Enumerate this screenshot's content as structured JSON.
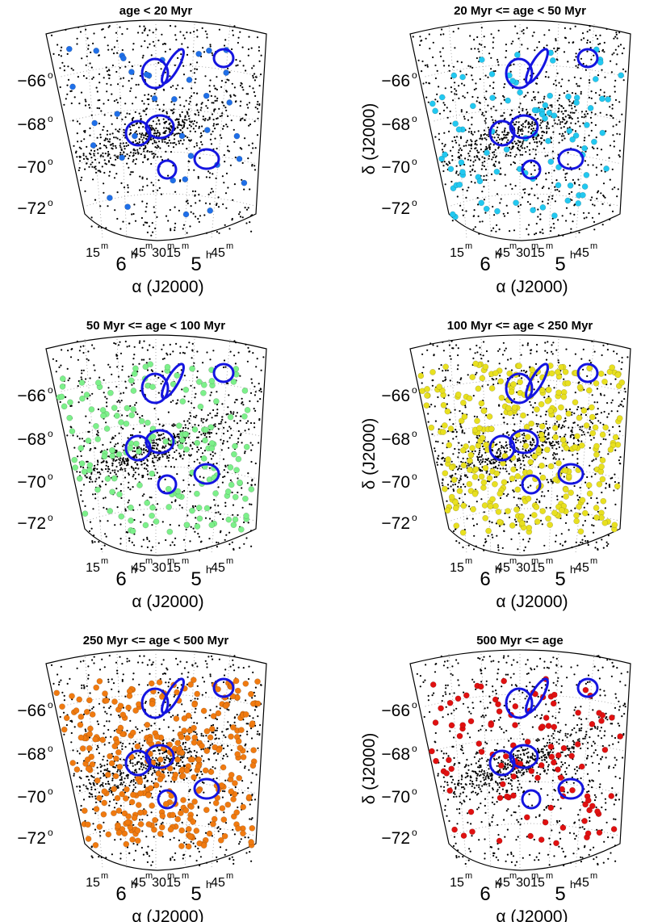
{
  "chart_data": [
    {
      "type": "scatter",
      "title": "age < 20 Myr",
      "xlabel": "α (J2000)",
      "ylabel": "",
      "marker_color": "#1f6fe8",
      "highlight_count": 36
    },
    {
      "type": "scatter",
      "title": "20 Myr <= age < 50 Myr",
      "xlabel": "α (J2000)",
      "ylabel": "δ (J2000)",
      "marker_color": "#22c8f0",
      "highlight_count": 90
    },
    {
      "type": "scatter",
      "title": "50 Myr <= age < 100 Myr",
      "xlabel": "α (J2000)",
      "ylabel": "",
      "marker_color": "#7cf08a",
      "highlight_count": 170
    },
    {
      "type": "scatter",
      "title": "100 Myr <= age < 250 Myr",
      "xlabel": "α (J2000)",
      "ylabel": "δ (J2000)",
      "marker_color": "#e8e020",
      "highlight_count": 320
    },
    {
      "type": "scatter",
      "title": "250 Myr <= age < 500 Myr",
      "xlabel": "α (J2000)",
      "ylabel": "",
      "marker_color": "#f07a10",
      "highlight_count": 340
    },
    {
      "type": "scatter",
      "title": "500 Myr <= age",
      "xlabel": "α (J2000)",
      "ylabel": "δ (J2000)",
      "marker_color": "#e01010",
      "highlight_count": 110
    }
  ],
  "axes": {
    "dec_ticks": [
      "−66",
      "−68",
      "−70",
      "−72"
    ],
    "ra_ticks": [
      {
        "major": "",
        "minor": "15"
      },
      {
        "major": "6",
        "minor": "45"
      },
      {
        "major": "",
        "minor": "30"
      },
      {
        "major": "",
        "minor": "15"
      },
      {
        "major": "5",
        "minor": ""
      },
      {
        "major": "",
        "minor": "45"
      }
    ],
    "grid": true
  },
  "overlay_color": "#1414e0"
}
